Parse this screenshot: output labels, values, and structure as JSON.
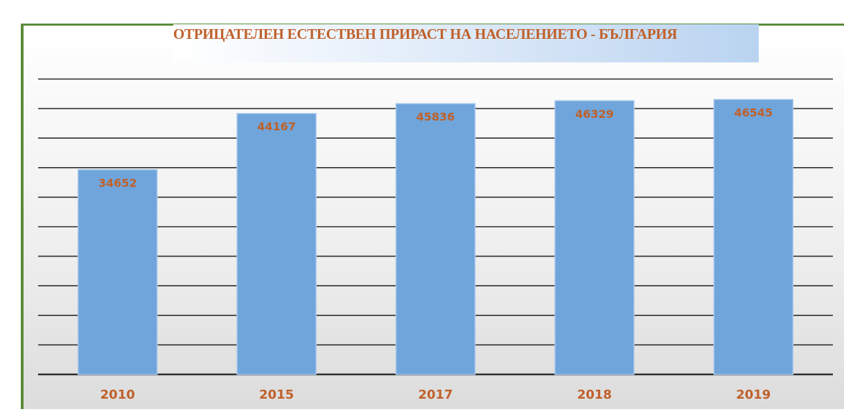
{
  "chart_data": {
    "type": "bar",
    "title": "ОТРИЦАТЕЛЕН ЕСТЕСТВЕН ПРИРАСТ НА НАСЕЛЕНИЕТО - БЪЛГАРИЯ",
    "categories": [
      "2010",
      "2015",
      "2017",
      "2018",
      "2019"
    ],
    "values": [
      34652,
      44167,
      45836,
      46329,
      46545
    ],
    "color": "#6fa5db",
    "ylim": [
      0,
      50000
    ],
    "yticks": [
      0,
      5000,
      10000,
      15000,
      20000,
      25000,
      30000,
      35000,
      40000,
      45000,
      50000
    ],
    "grid": true
  }
}
